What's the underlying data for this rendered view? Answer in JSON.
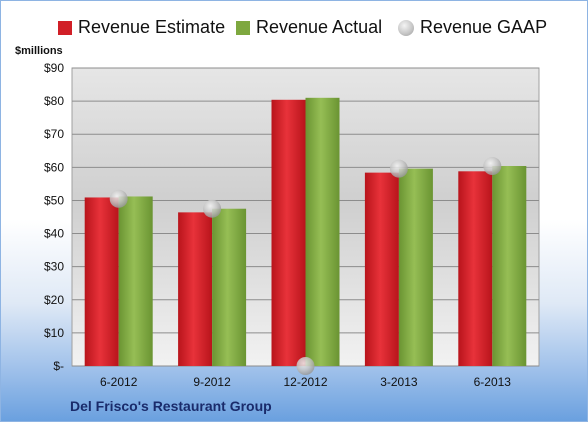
{
  "legend": {
    "estimate": "Revenue Estimate",
    "actual": "Revenue Actual",
    "gaap": "Revenue GAAP"
  },
  "units_label": "$millions",
  "company": "Del Frisco's Restaurant Group",
  "colors": {
    "estimate": "#d11f27",
    "actual": "#7ea83f",
    "gaap": "#c0c0c0"
  },
  "chart_data": {
    "type": "bar",
    "categories": [
      "6-2012",
      "9-2012",
      "12-2012",
      "3-2013",
      "6-2013"
    ],
    "series": [
      {
        "name": "Revenue Estimate",
        "values": [
          50.9,
          46.4,
          80.4,
          58.4,
          58.8
        ]
      },
      {
        "name": "Revenue Actual",
        "values": [
          51.2,
          47.5,
          81.0,
          59.6,
          60.4
        ]
      },
      {
        "name": "Revenue GAAP",
        "values": [
          50.5,
          47.5,
          0,
          59.6,
          60.4
        ]
      }
    ],
    "ylim": [
      0,
      90
    ],
    "yticks": [
      0,
      10,
      20,
      30,
      40,
      50,
      60,
      70,
      80,
      90
    ],
    "ytick_labels": [
      "$-",
      "$10",
      "$20",
      "$30",
      "$40",
      "$50",
      "$60",
      "$70",
      "$80",
      "$90"
    ],
    "ylabel": "$millions",
    "grid": true,
    "legend_position": "top"
  }
}
